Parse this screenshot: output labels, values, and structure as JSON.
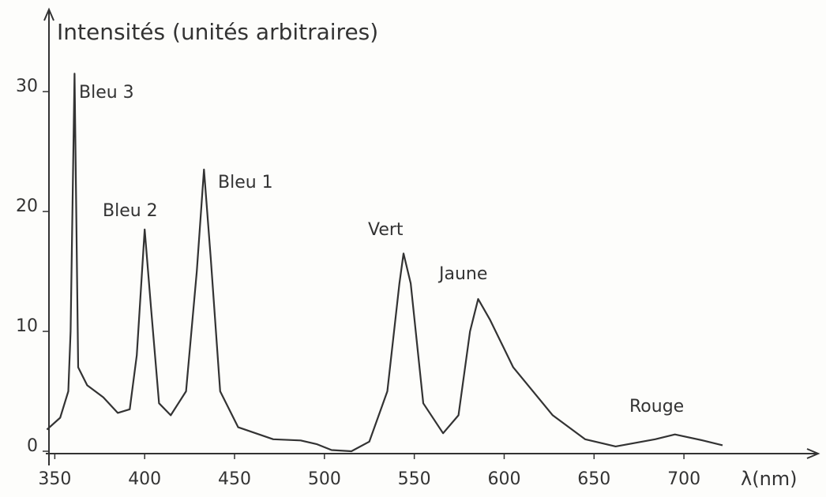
{
  "chart_data": {
    "type": "line",
    "y_axis_label": "Intensités (unités arbitraires)",
    "x_axis_label": "λ(nm)",
    "xlim": [
      345,
      772
    ],
    "ylim": [
      0,
      36
    ],
    "xticks": [
      350,
      400,
      450,
      500,
      550,
      600,
      650,
      700
    ],
    "yticks": [
      0,
      10,
      20,
      30
    ],
    "color": "#333333",
    "x": [
      345.6,
      353,
      357.5,
      358.8,
      361,
      363,
      368,
      377,
      385,
      391.7,
      395.6,
      400,
      403.5,
      408,
      414.5,
      423,
      429,
      433,
      436.8,
      442,
      452,
      471.5,
      486.8,
      495.6,
      504,
      515,
      525,
      535,
      541.7,
      544,
      548,
      555,
      566,
      574.6,
      581,
      585.5,
      592,
      605,
      627,
      645,
      662,
      684,
      695,
      710.5,
      721.5
    ],
    "values": [
      1.8,
      2.8,
      5,
      10,
      31.5,
      7,
      5.5,
      4.5,
      3.2,
      3.5,
      8,
      18.5,
      12,
      4,
      3,
      5,
      15,
      23.5,
      16,
      5,
      2,
      1,
      0.9,
      0.6,
      0.1,
      0,
      0.8,
      5,
      14,
      16.5,
      14,
      4,
      1.5,
      3,
      10,
      12.7,
      11,
      7,
      3,
      1,
      0.4,
      1,
      1.4,
      0.9,
      0.5
    ],
    "annotations": [
      "Bleu 3",
      "Bleu 2",
      "Bleu 1",
      "Vert",
      "Jaune",
      "Rouge"
    ]
  }
}
